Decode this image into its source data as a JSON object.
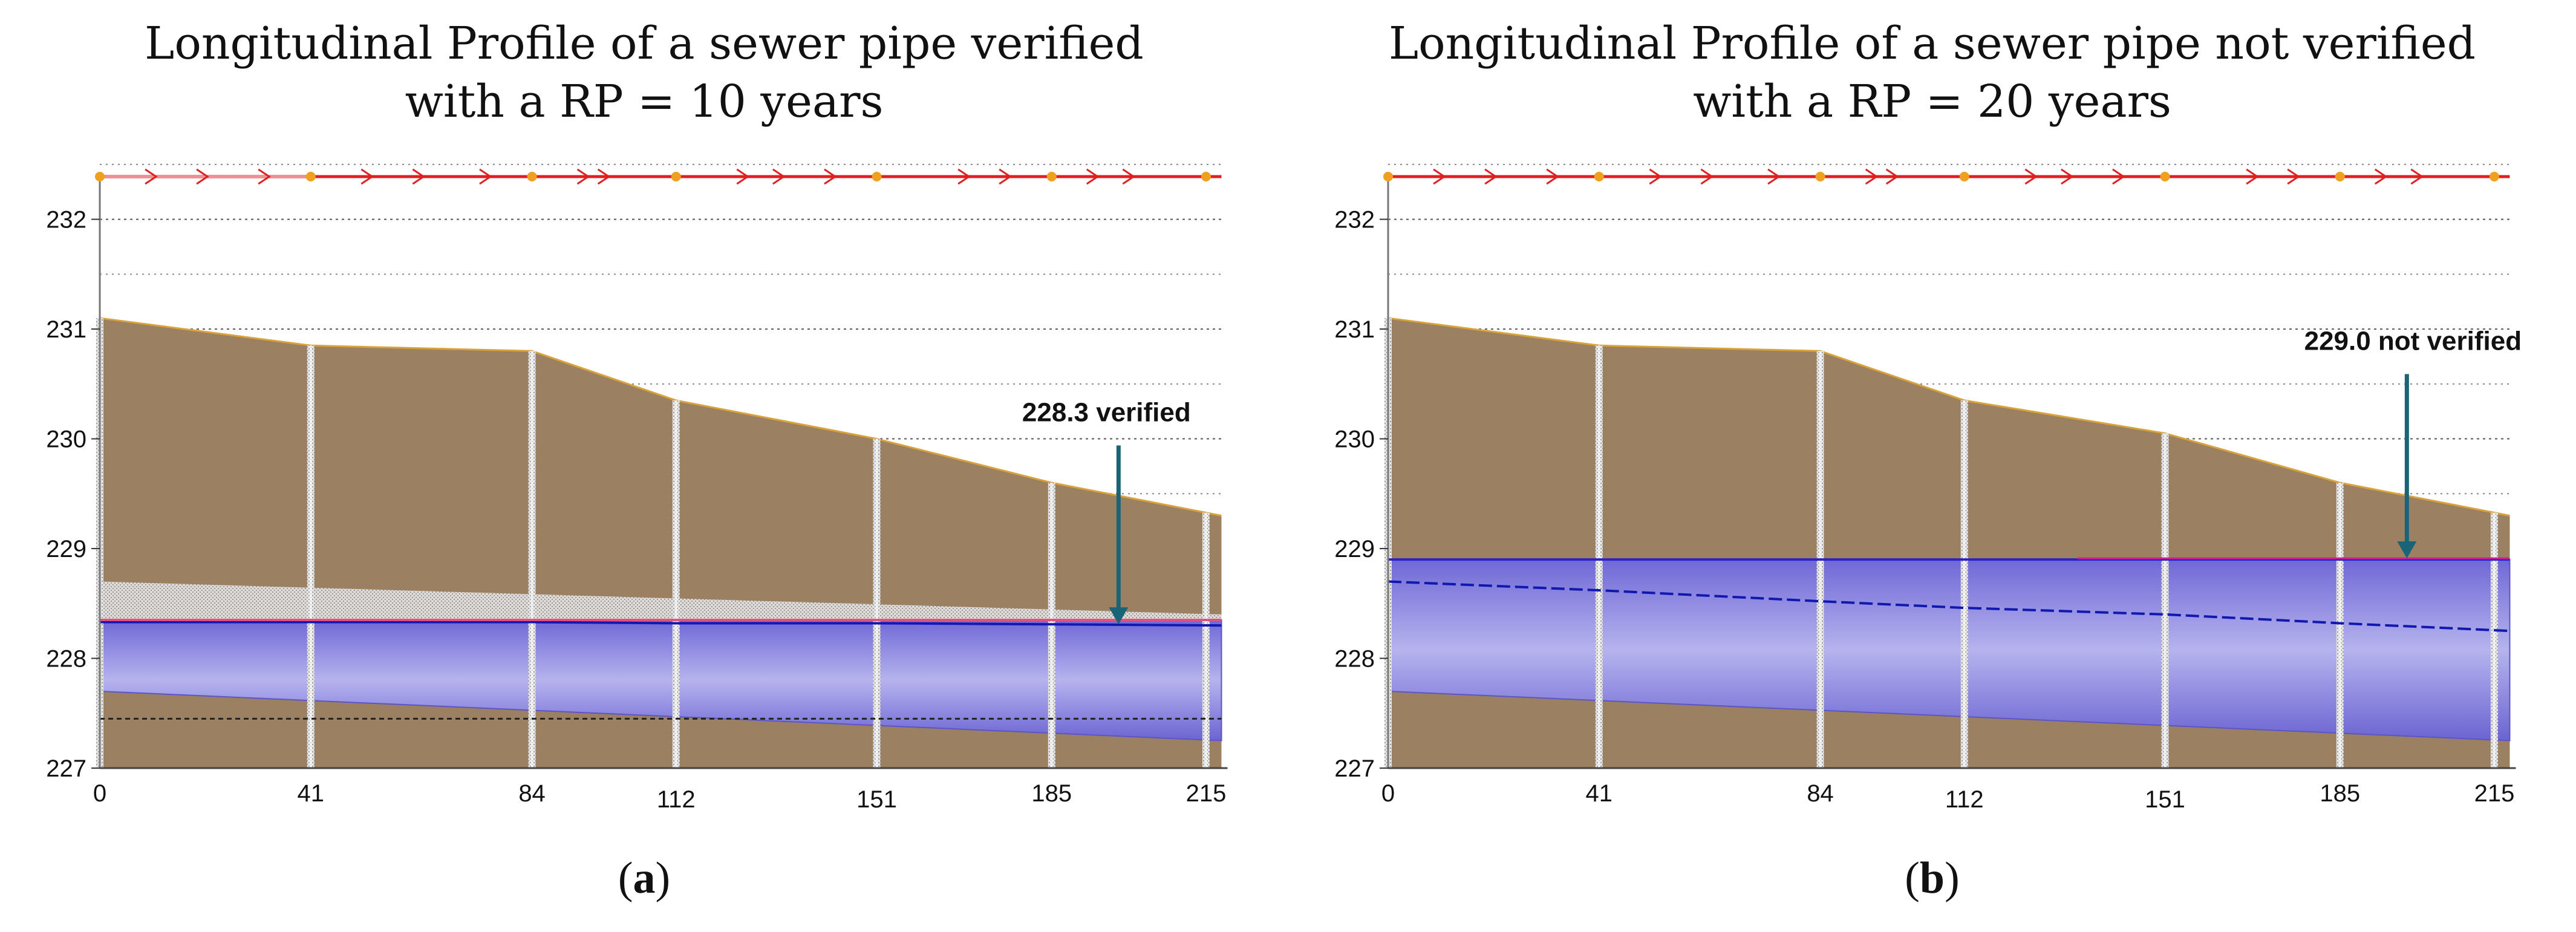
{
  "chart_data": [
    {
      "type": "area",
      "panel": "a",
      "title_line1": "Longitudinal Profile of a sewer pipe verified",
      "title_line2": "with a RP = 10 years",
      "caption_letter": "a",
      "xlabel": "",
      "ylabel": "",
      "xlim": [
        0,
        221
      ],
      "ylim": [
        227,
        232.4
      ],
      "x_ticks": [
        0,
        41,
        84,
        112,
        151,
        185,
        215
      ],
      "y_ticks": [
        227,
        228,
        229,
        230,
        231,
        232
      ],
      "ground_profile": {
        "x": [
          0,
          41,
          84,
          112,
          151,
          185,
          218
        ],
        "y": [
          231.1,
          230.85,
          230.8,
          230.35,
          230.0,
          229.6,
          229.3
        ]
      },
      "pipe_top": {
        "x": [
          0,
          218
        ],
        "y": [
          228.35,
          228.35
        ]
      },
      "pipe_invert": {
        "x": [
          0,
          218
        ],
        "y": [
          227.7,
          227.25
        ]
      },
      "water_level": {
        "x": [
          0,
          41,
          84,
          112,
          151,
          185,
          218
        ],
        "y": [
          228.33,
          228.33,
          228.33,
          228.32,
          228.32,
          228.31,
          228.3
        ]
      },
      "manholes": [
        0,
        41,
        84,
        112,
        151,
        185,
        215
      ],
      "annotation": {
        "text": "228.3 verified",
        "x": 198,
        "y": 228.3
      },
      "colors": {
        "ground": "#9c8062",
        "pipe": "#8a86dc",
        "pipe_edge": "#2a22c8",
        "water": "#1018b0",
        "arrow": "#1a6478",
        "network": "#e02020"
      }
    },
    {
      "type": "area",
      "panel": "b",
      "title_line1": "Longitudinal Profile of a sewer pipe not verified",
      "title_line2": "with a RP = 20 years",
      "caption_letter": "b",
      "xlabel": "",
      "ylabel": "",
      "xlim": [
        0,
        221
      ],
      "ylim": [
        227,
        232.4
      ],
      "x_ticks": [
        0,
        41,
        84,
        112,
        151,
        185,
        215
      ],
      "y_ticks": [
        227,
        228,
        229,
        230,
        231,
        232
      ],
      "ground_profile": {
        "x": [
          0,
          41,
          84,
          112,
          151,
          185,
          218
        ],
        "y": [
          231.1,
          230.85,
          230.8,
          230.35,
          230.05,
          229.6,
          229.3
        ]
      },
      "pipe_top": {
        "x": [
          0,
          218
        ],
        "y": [
          228.9,
          228.9
        ]
      },
      "pipe_invert": {
        "x": [
          0,
          218
        ],
        "y": [
          227.7,
          227.25
        ]
      },
      "water_level": {
        "x": [
          0,
          41,
          84,
          112,
          151,
          185,
          218
        ],
        "y": [
          228.7,
          228.62,
          228.52,
          228.46,
          228.4,
          228.32,
          228.25
        ]
      },
      "manholes": [
        0,
        41,
        84,
        112,
        151,
        185,
        215
      ],
      "annotation": {
        "text": "229.0 not verified",
        "x": 198,
        "y": 228.9
      },
      "colors": {
        "ground": "#9c8062",
        "pipe": "#8a86dc",
        "pipe_edge": "#2a22c8",
        "water": "#1018b0",
        "arrow": "#1a6478",
        "network": "#e02020"
      }
    }
  ]
}
